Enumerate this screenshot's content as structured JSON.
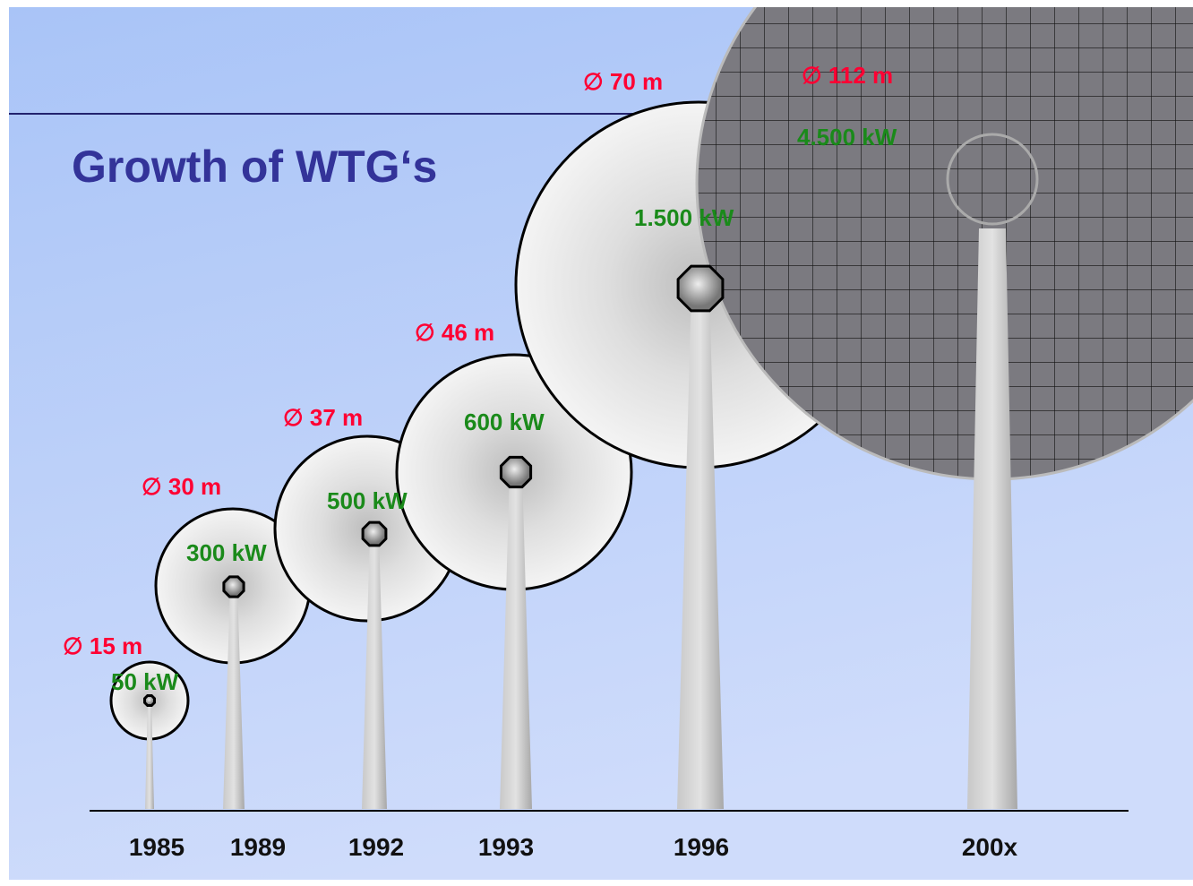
{
  "title": "Growth of WTG‘s",
  "turbines": [
    {
      "year": "1985",
      "diameter": "∅ 15 m",
      "power": "50 kW"
    },
    {
      "year": "1989",
      "diameter": "∅ 30 m",
      "power": "300 kW"
    },
    {
      "year": "1992",
      "diameter": "∅ 37 m",
      "power": "500 kW"
    },
    {
      "year": "1993",
      "diameter": "∅ 46 m",
      "power": "600 kW"
    },
    {
      "year": "1996",
      "diameter": "∅ 70 m",
      "power": "1.500 kW"
    },
    {
      "year": "200x",
      "diameter": "∅ 112 m",
      "power": "4.500 kW"
    }
  ]
}
